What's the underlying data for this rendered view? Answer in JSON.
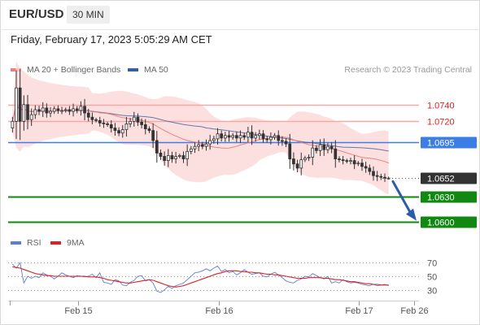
{
  "header": {
    "symbol": "EUR/USD",
    "timeframe": "30 MIN",
    "datetime": "Friday, February 17, 2023 5:05:29 AM CET"
  },
  "legend": {
    "ma20_label": "MA 20 + Bollinger Bands",
    "ma20_color": "#f08080",
    "ma50_label": "MA 50",
    "ma50_color": "#3a5fa0",
    "credit": "Research © 2023 Trading Central"
  },
  "indicator_legend": {
    "rsi_label": "RSI",
    "rsi_color": "#5a7fd6",
    "ma9_label": "9MA",
    "ma9_color": "#e02020"
  },
  "chart_data": [
    {
      "type": "candlestick",
      "title": "",
      "x_ticks": [
        "Feb 15",
        "Feb 16",
        "Feb 17",
        "Feb 26"
      ],
      "price_range": [
        1.0588,
        1.0768
      ],
      "last_price": 1.0652,
      "levels": [
        {
          "label": "1.0740",
          "value": 1.074,
          "kind": "resistance",
          "color": "#f4a9a9",
          "text_color": "#e02020"
        },
        {
          "label": "1.0720",
          "value": 1.072,
          "kind": "resistance",
          "color": "#f4a9a9",
          "text_color": "#e02020"
        },
        {
          "label": "1.0695",
          "value": 1.0695,
          "kind": "pivot",
          "color": "#3d7de6",
          "text_color": "#ffffff"
        },
        {
          "label": "1.0652",
          "value": 1.0652,
          "kind": "last",
          "color": "#333333",
          "text_color": "#ffffff"
        },
        {
          "label": "1.0630",
          "value": 1.063,
          "kind": "support",
          "color": "#118811",
          "text_color": "#ffffff"
        },
        {
          "label": "1.0600",
          "value": 1.06,
          "kind": "support",
          "color": "#118811",
          "text_color": "#ffffff"
        }
      ],
      "closes": [
        1.072,
        1.076,
        1.072,
        1.074,
        1.0722,
        1.0728,
        1.0734,
        1.0732,
        1.0736,
        1.073,
        1.0732,
        1.0735,
        1.0733,
        1.0733,
        1.0734,
        1.0732,
        1.0735,
        1.0733,
        1.0738,
        1.073,
        1.0725,
        1.0722,
        1.0721,
        1.0718,
        1.0717,
        1.0716,
        1.0712,
        1.0709,
        1.0706,
        1.071,
        1.0717,
        1.072,
        1.0725,
        1.0719,
        1.0716,
        1.0711,
        1.0709,
        1.0697,
        1.0682,
        1.0678,
        1.0673,
        1.0679,
        1.0675,
        1.0678,
        1.0679,
        1.0675,
        1.0684,
        1.0687,
        1.069,
        1.0692,
        1.069,
        1.0693,
        1.0697,
        1.0699,
        1.0705,
        1.07,
        1.0703,
        1.0701,
        1.0703,
        1.07,
        1.0703,
        1.0701,
        1.0707,
        1.07,
        1.0703,
        1.0705,
        1.0699,
        1.0698,
        1.0701,
        1.0703,
        1.0697,
        1.0696,
        1.0693,
        1.0675,
        1.0669,
        1.0664,
        1.0674,
        1.0676,
        1.0677,
        1.0688,
        1.0685,
        1.0692,
        1.0686,
        1.069,
        1.0687,
        1.0675,
        1.0674,
        1.0673,
        1.0672,
        1.0673,
        1.0669,
        1.067,
        1.0666,
        1.0664,
        1.066,
        1.0655,
        1.0654,
        1.0653,
        1.0652,
        1.0652
      ]
    },
    {
      "type": "line",
      "title": "RSI",
      "y_ticks": [
        70,
        50,
        30
      ],
      "ylim": [
        20,
        80
      ],
      "series": [
        {
          "name": "RSI",
          "values": [
            68,
            62,
            70,
            40,
            50,
            47,
            50,
            48,
            55,
            52,
            50,
            46,
            50,
            55,
            52,
            50,
            48,
            51,
            50,
            49,
            50,
            53,
            48,
            55,
            41,
            40,
            38,
            45,
            43,
            37,
            36,
            41,
            44,
            50,
            51,
            43,
            45,
            40,
            28,
            26,
            30,
            35,
            32,
            36,
            38,
            40,
            45,
            50,
            55,
            56,
            58,
            61,
            58,
            62,
            65,
            57,
            60,
            55,
            57,
            52,
            55,
            60,
            56,
            53,
            54,
            55,
            50,
            49,
            53,
            56,
            52,
            48,
            43,
            41,
            40,
            44,
            46,
            50,
            49,
            54,
            51,
            48,
            46,
            50,
            40,
            42,
            40,
            45,
            42,
            40,
            41,
            40,
            38,
            37,
            36,
            38,
            36,
            37,
            38,
            36
          ]
        },
        {
          "name": "9MA",
          "values": [
            64,
            63,
            62,
            60,
            58,
            56,
            54,
            53,
            52,
            51,
            51,
            50,
            50,
            50,
            50,
            50,
            50,
            50,
            50,
            50,
            49,
            49,
            49,
            48,
            47,
            45,
            44,
            43,
            42,
            41,
            40,
            40,
            41,
            42,
            43,
            44,
            45,
            44,
            42,
            40,
            38,
            36,
            35,
            34,
            35,
            36,
            38,
            40,
            42,
            44,
            46,
            48,
            50,
            52,
            54,
            55,
            57,
            58,
            58,
            58,
            57,
            57,
            56,
            56,
            55,
            55,
            54,
            53,
            53,
            52,
            52,
            51,
            50,
            49,
            48,
            47,
            47,
            47,
            48,
            48,
            48,
            48,
            47,
            47,
            46,
            45,
            45,
            44,
            43,
            42,
            42,
            41,
            40,
            39,
            39,
            38,
            38,
            37,
            37,
            37
          ]
        }
      ]
    }
  ]
}
